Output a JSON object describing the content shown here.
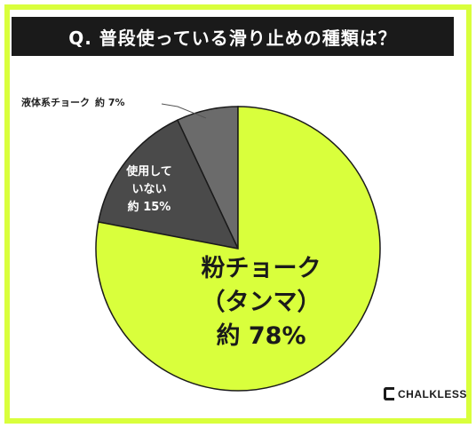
{
  "title": "Q. 普段使っている滑り止めの種類は？",
  "chart_data": {
    "type": "pie",
    "title": "Q. 普段使っている滑り止めの種類は？",
    "slices": [
      {
        "label": "粉チョーク（タンマ）",
        "label_line1": "粉チョーク",
        "label_line2": "（タンマ）",
        "value_text": "約 78%",
        "value": 78,
        "color": "#d9ff3c"
      },
      {
        "label": "使用していない",
        "label_line1": "使用して",
        "label_line2": "いない",
        "value_text": "約 15%",
        "value": 15,
        "color": "#4a4a4a"
      },
      {
        "label": "液体系チョーク",
        "value_text": "約 7%",
        "value": 7,
        "color": "#6b6b6b"
      }
    ]
  },
  "logo": {
    "text": "CHALKLESS"
  },
  "colors": {
    "accent": "#d9ff3c",
    "dark": "#1a1a1a"
  }
}
